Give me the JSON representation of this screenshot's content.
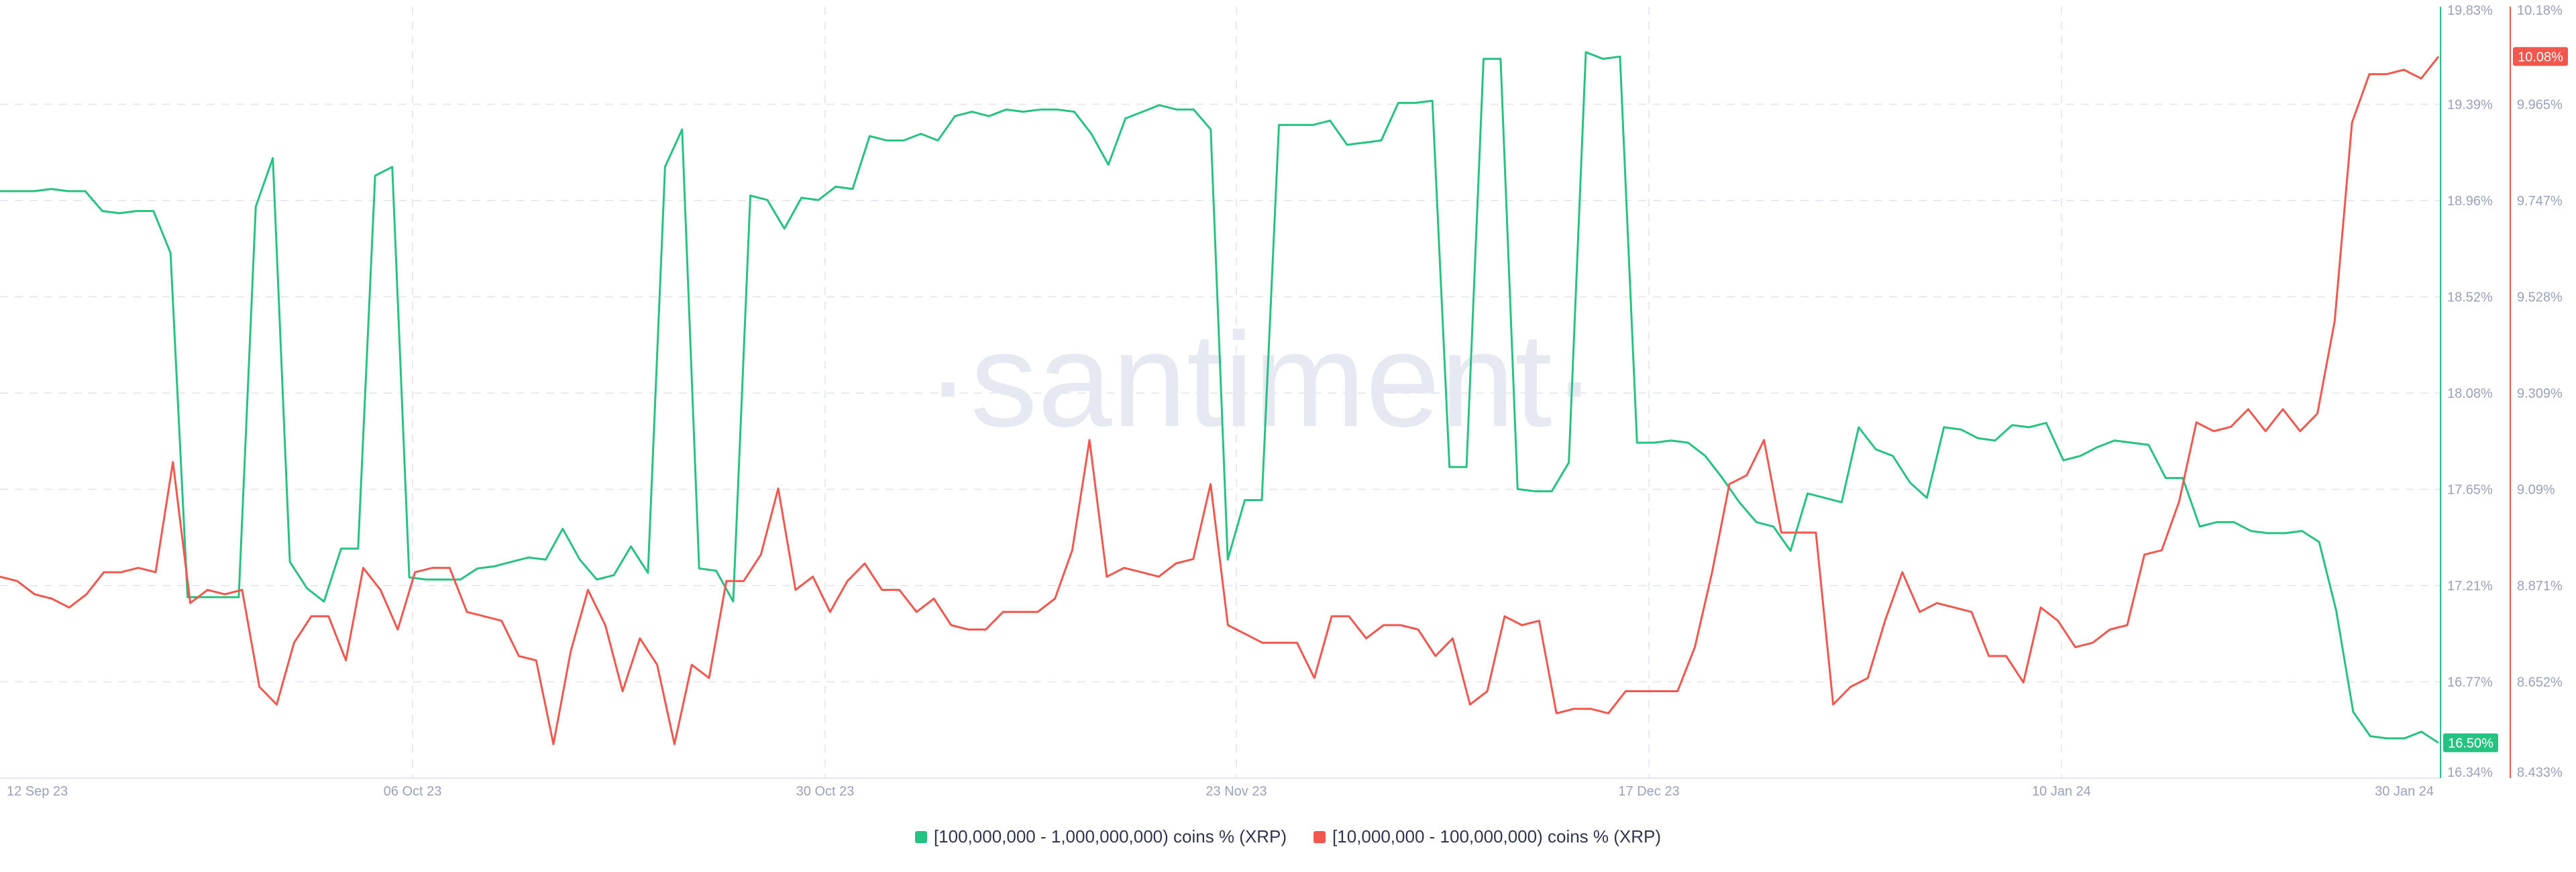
{
  "chart_data": {
    "type": "line",
    "watermark": "·santiment·",
    "x_tick_labels": [
      "12 Sep 23",
      "06 Oct 23",
      "30 Oct 23",
      "23 Nov 23",
      "17 Dec 23",
      "10 Jan 24",
      "30 Jan 24"
    ],
    "x_range": [
      "2023-09-12",
      "2024-01-30"
    ],
    "grid": true,
    "legend_position": "bottom",
    "series": [
      {
        "name": "[100,000,000 - 1,000,000,000) coins % (XRP)",
        "color": "#26c281",
        "axis": "left",
        "axis_ticks": [
          "19.83%",
          "19.39%",
          "18.96%",
          "18.52%",
          "18.08%",
          "17.65%",
          "17.21%",
          "16.77%",
          "16.34%"
        ],
        "ylim": [
          16.34,
          19.83
        ],
        "current_label": "16.50%",
        "values": [
          19.0,
          19.0,
          19.0,
          19.01,
          19.0,
          19.0,
          18.91,
          18.9,
          18.91,
          18.91,
          18.72,
          17.16,
          17.16,
          17.16,
          17.16,
          18.93,
          19.15,
          17.32,
          17.2,
          17.14,
          17.38,
          17.38,
          19.07,
          19.11,
          17.25,
          17.24,
          17.24,
          17.24,
          17.29,
          17.3,
          17.32,
          17.34,
          17.33,
          17.47,
          17.33,
          17.24,
          17.26,
          17.39,
          17.27,
          19.11,
          19.28,
          17.29,
          17.28,
          17.14,
          18.98,
          18.96,
          18.83,
          18.97,
          18.96,
          19.02,
          19.01,
          19.25,
          19.23,
          19.23,
          19.26,
          19.23,
          19.34,
          19.36,
          19.34,
          19.37,
          19.36,
          19.37,
          19.37,
          19.36,
          19.26,
          19.12,
          19.33,
          19.36,
          19.39,
          19.37,
          19.37,
          19.28,
          17.33,
          17.6,
          17.6,
          19.3,
          19.3,
          19.3,
          19.32,
          19.21,
          19.22,
          19.23,
          19.4,
          19.4,
          19.41,
          17.75,
          17.75,
          19.6,
          19.6,
          17.65,
          17.64,
          17.64,
          17.77,
          19.63,
          19.6,
          19.61,
          17.86,
          17.86,
          17.87,
          17.86,
          17.8,
          17.7,
          17.59,
          17.5,
          17.48,
          17.37,
          17.63,
          17.61,
          17.59,
          17.93,
          17.83,
          17.8,
          17.68,
          17.61,
          17.93,
          17.92,
          17.88,
          17.87,
          17.94,
          17.93,
          17.95,
          17.78,
          17.8,
          17.84,
          17.87,
          17.86,
          17.85,
          17.7,
          17.7,
          17.48,
          17.5,
          17.5,
          17.46,
          17.45,
          17.45,
          17.46,
          17.41,
          17.1,
          16.64,
          16.53,
          16.52,
          16.52,
          16.55,
          16.5
        ]
      },
      {
        "name": "[10,000,000 - 100,000,000) coins % (XRP)",
        "color": "#f2564d",
        "axis": "right",
        "axis_ticks": [
          "10.18%",
          "9.965%",
          "9.747%",
          "9.528%",
          "9.309%",
          "9.09%",
          "8.871%",
          "8.652%",
          "8.433%"
        ],
        "ylim": [
          8.433,
          10.18
        ],
        "current_label": "10.08%",
        "values": [
          8.89,
          8.88,
          8.85,
          8.84,
          8.82,
          8.85,
          8.9,
          8.9,
          8.91,
          8.9,
          9.15,
          8.83,
          8.86,
          8.85,
          8.86,
          8.64,
          8.6,
          8.74,
          8.8,
          8.8,
          8.7,
          8.91,
          8.86,
          8.77,
          8.9,
          8.91,
          8.91,
          8.81,
          8.8,
          8.79,
          8.71,
          8.7,
          8.51,
          8.72,
          8.86,
          8.78,
          8.63,
          8.75,
          8.69,
          8.51,
          8.69,
          8.66,
          8.88,
          8.88,
          8.94,
          9.09,
          8.86,
          8.89,
          8.81,
          8.88,
          8.92,
          8.86,
          8.86,
          8.81,
          8.84,
          8.78,
          8.77,
          8.77,
          8.81,
          8.81,
          8.81,
          8.84,
          8.95,
          9.2,
          8.89,
          8.91,
          8.9,
          8.89,
          8.92,
          8.93,
          9.1,
          8.78,
          8.76,
          8.74,
          8.74,
          8.74,
          8.66,
          8.8,
          8.8,
          8.75,
          8.78,
          8.78,
          8.77,
          8.71,
          8.75,
          8.6,
          8.63,
          8.8,
          8.78,
          8.79,
          8.58,
          8.59,
          8.59,
          8.58,
          8.63,
          8.63,
          8.63,
          8.63,
          8.73,
          8.9,
          9.1,
          9.12,
          9.2,
          8.99,
          8.99,
          8.99,
          8.6,
          8.64,
          8.66,
          8.79,
          8.9,
          8.81,
          8.83,
          8.82,
          8.81,
          8.71,
          8.71,
          8.65,
          8.82,
          8.79,
          8.73,
          8.74,
          8.77,
          8.78,
          8.94,
          8.95,
          9.06,
          9.24,
          9.22,
          9.23,
          9.27,
          9.22,
          9.27,
          9.22,
          9.26,
          9.47,
          9.92,
          10.03,
          10.03,
          10.04,
          10.02,
          10.07
        ]
      }
    ]
  }
}
